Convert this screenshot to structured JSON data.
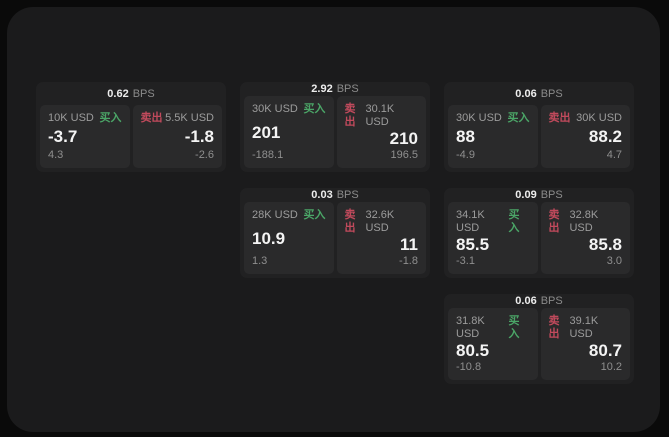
{
  "labels": {
    "bps": "BPS",
    "buy": "买入",
    "sell": "卖出"
  },
  "colors": {
    "buy_green": "#4ba567",
    "sell_red": "#c14a5c",
    "window_bg": "#1b1b1c",
    "card_bg": "#212122",
    "panel_bg": "#2a2a2b",
    "page_bg": "#0a0a0a"
  },
  "cards": [
    {
      "bps": "0.62",
      "buy": {
        "amount": "10K USD",
        "price": "-3.7",
        "delta": "4.3"
      },
      "sell": {
        "amount": "5.5K USD",
        "price": "-1.8",
        "delta": "-2.6"
      }
    },
    {
      "bps": "2.92",
      "buy": {
        "amount": "30K USD",
        "price": "201",
        "delta": "-188.1"
      },
      "sell": {
        "amount": "30.1K USD",
        "price": "210",
        "delta": "196.5"
      }
    },
    {
      "bps": "0.06",
      "buy": {
        "amount": "30K USD",
        "price": "88",
        "delta": "-4.9"
      },
      "sell": {
        "amount": "30K USD",
        "price": "88.2",
        "delta": "4.7"
      }
    },
    {
      "bps": "0.03",
      "buy": {
        "amount": "28K USD",
        "price": "10.9",
        "delta": "1.3"
      },
      "sell": {
        "amount": "32.6K USD",
        "price": "11",
        "delta": "-1.8"
      }
    },
    {
      "bps": "0.09",
      "buy": {
        "amount": "34.1K USD",
        "price": "85.5",
        "delta": "-3.1"
      },
      "sell": {
        "amount": "32.8K USD",
        "price": "85.8",
        "delta": "3.0"
      }
    },
    {
      "bps": "0.06",
      "buy": {
        "amount": "31.8K USD",
        "price": "80.5",
        "delta": "-10.8"
      },
      "sell": {
        "amount": "39.1K USD",
        "price": "80.7",
        "delta": "10.2"
      }
    }
  ]
}
